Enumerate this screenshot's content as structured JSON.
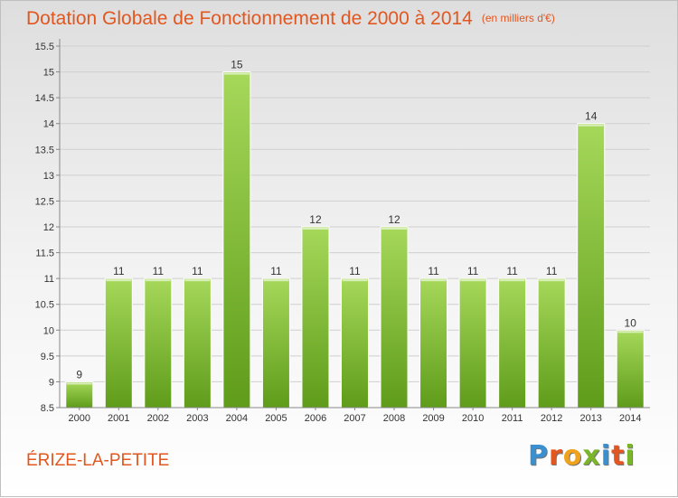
{
  "title": "Dotation Globale de Fonctionnement de 2000 à 2014",
  "unit": "(en milliers d'€)",
  "commune": "ÉRIZE-LA-PETITE",
  "logo": "Proxiti",
  "colors": {
    "title": "#e2561f",
    "bar_top": "#a6d85a",
    "bar_bottom": "#5f9c1a"
  },
  "chart_data": {
    "type": "bar",
    "categories": [
      "2000",
      "2001",
      "2002",
      "2003",
      "2004",
      "2005",
      "2006",
      "2007",
      "2008",
      "2009",
      "2010",
      "2011",
      "2012",
      "2013",
      "2014"
    ],
    "values": [
      9,
      11,
      11,
      11,
      15,
      11,
      12,
      11,
      12,
      11,
      11,
      11,
      11,
      14,
      10
    ],
    "ylim": [
      8.5,
      15.5
    ],
    "yticks": [
      "8.5",
      "9",
      "9.5",
      "10",
      "10.5",
      "11",
      "11.5",
      "12",
      "12.5",
      "13",
      "13.5",
      "14",
      "14.5",
      "15",
      "15.5"
    ],
    "grid": true
  }
}
